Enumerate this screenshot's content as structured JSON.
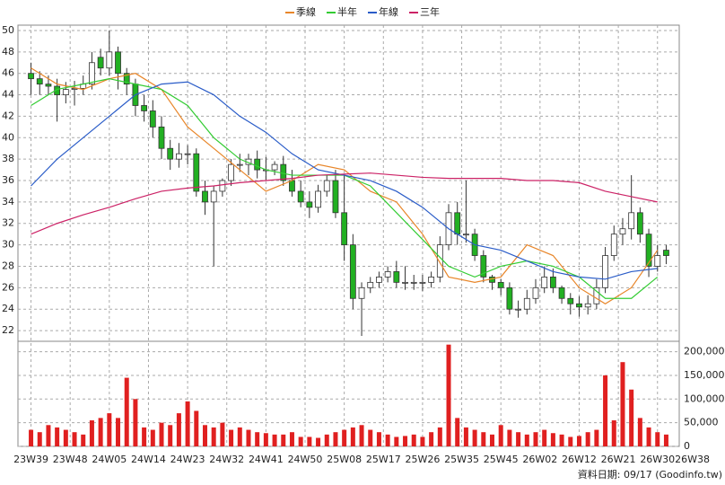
{
  "chart_data": {
    "type": "candlestick",
    "x": [
      0,
      2,
      4,
      6,
      8,
      10,
      12,
      14,
      16,
      18,
      20,
      22,
      24,
      26,
      28,
      30,
      32,
      34,
      36,
      38,
      40,
      42,
      44,
      46,
      48,
      50,
      52,
      54,
      56,
      58,
      60,
      62,
      64,
      66,
      68,
      70,
      72,
      74,
      76,
      78,
      80,
      82,
      84,
      86,
      88,
      90,
      92,
      94,
      96,
      98,
      100,
      102,
      104,
      106,
      108,
      110,
      112,
      114,
      116,
      118,
      120,
      122,
      124,
      126,
      128,
      130,
      132,
      134,
      136,
      138,
      140,
      142,
      144,
      146
    ],
    "open": [
      46,
      45.5,
      45,
      44.8,
      44,
      44.5,
      44.6,
      45,
      47.5,
      46.5,
      48,
      46,
      45,
      43,
      42.5,
      41,
      39,
      38,
      38.5,
      38.5,
      35,
      34,
      35,
      36,
      37.5,
      37.5,
      38,
      37,
      37,
      37.5,
      36,
      35,
      34,
      33.5,
      35,
      36,
      33,
      30,
      25,
      26,
      26.5,
      27,
      27.5,
      26.5,
      26.5,
      26.5,
      26.5,
      27,
      30,
      33,
      31,
      31,
      29,
      27,
      26.5,
      26,
      24,
      24,
      25,
      26,
      27,
      26,
      25,
      24.5,
      24.2,
      24.5,
      26,
      29,
      31,
      31.5,
      33,
      31,
      28,
      29.5
    ],
    "high": [
      47,
      46.2,
      45.8,
      45.5,
      45.2,
      45.3,
      45.8,
      48,
      48.3,
      50,
      48.5,
      46.5,
      45.5,
      44,
      43.5,
      42,
      39.8,
      39.5,
      39.3,
      39,
      36,
      35.5,
      36.2,
      38,
      38.5,
      38.5,
      38.8,
      38.2,
      37.8,
      38.3,
      37,
      36,
      35,
      35.6,
      36.5,
      37,
      36.5,
      31,
      26.5,
      27,
      27.5,
      28,
      28.5,
      28,
      27.2,
      27.2,
      27.5,
      30.8,
      33.8,
      34,
      36,
      31.5,
      29.5,
      27.2,
      26.8,
      26.5,
      24.8,
      25.8,
      26.8,
      28,
      27.8,
      26.2,
      25.5,
      25.2,
      25.3,
      26.8,
      29.8,
      31.8,
      32.5,
      36.5,
      33.5,
      31.5,
      30,
      30
    ],
    "low": [
      44,
      44,
      44,
      41.5,
      43.2,
      43,
      44,
      44.5,
      45.8,
      45.8,
      44.5,
      44,
      42,
      41.5,
      40,
      38,
      37,
      37.2,
      37.5,
      34.5,
      32.8,
      28,
      34.5,
      35.5,
      36.8,
      36.5,
      36.2,
      36,
      36.5,
      35.5,
      34.5,
      33.5,
      32.5,
      33,
      34.5,
      32.5,
      28.5,
      24,
      21.5,
      25.5,
      26,
      26.5,
      26,
      25.8,
      25.8,
      25.7,
      26,
      26.5,
      29.5,
      30,
      30.2,
      28.5,
      26.5,
      25.8,
      25.3,
      23.5,
      23.2,
      23.5,
      24.5,
      25.5,
      25.5,
      24.5,
      23.5,
      23.3,
      23.5,
      24,
      25.5,
      28.5,
      30,
      30.5,
      30.2,
      27,
      27.5,
      28.2
    ],
    "close": [
      45.5,
      45,
      44.8,
      44,
      44.5,
      44.6,
      45,
      47,
      46.5,
      48,
      46,
      45,
      43,
      42.5,
      41,
      39,
      38,
      38.5,
      38.5,
      35,
      34,
      35,
      36,
      37.5,
      37.5,
      38,
      37,
      37,
      37.5,
      36,
      35,
      34,
      33.5,
      35,
      36,
      33,
      30,
      25,
      26,
      26.5,
      27,
      27.5,
      26.5,
      26.5,
      26.5,
      26.5,
      27,
      30,
      33,
      31,
      31,
      29,
      27,
      26.5,
      26,
      24,
      24,
      25,
      26,
      27,
      26,
      25,
      24.5,
      24.2,
      24.5,
      26,
      29,
      31,
      31.5,
      33,
      31,
      28,
      29,
      29
    ],
    "volume": [
      35000,
      30000,
      45000,
      40000,
      35000,
      30000,
      25000,
      55000,
      60000,
      70000,
      60000,
      145000,
      100000,
      40000,
      35000,
      50000,
      45000,
      70000,
      95000,
      75000,
      45000,
      40000,
      50000,
      35000,
      40000,
      35000,
      30000,
      28000,
      25000,
      25000,
      30000,
      20000,
      20000,
      18000,
      25000,
      30000,
      35000,
      40000,
      45000,
      35000,
      30000,
      25000,
      20000,
      22000,
      25000,
      20000,
      30000,
      40000,
      215000,
      60000,
      40000,
      35000,
      30000,
      25000,
      45000,
      35000,
      30000,
      25000,
      30000,
      35000,
      28000,
      25000,
      20000,
      22000,
      30000,
      35000,
      150000,
      55000,
      178000,
      120000,
      60000,
      40000,
      30000,
      25000
    ],
    "up_color": "#ffffff",
    "down_color": "#22b022",
    "volume_color": "#e02020",
    "lines": {
      "x": [
        0,
        6,
        12,
        18,
        24,
        30,
        36,
        42,
        48,
        54,
        60,
        66,
        72,
        78,
        84,
        90,
        96,
        102,
        108,
        114,
        120,
        126,
        132,
        138,
        144
      ],
      "series": [
        {
          "name": "季線",
          "color": "#e8862a",
          "values": [
            46.5,
            45,
            44.5,
            45.5,
            46,
            44.5,
            41,
            39,
            37,
            35,
            36,
            37.5,
            37,
            35,
            34,
            31,
            27,
            26.5,
            27,
            30,
            29,
            26,
            24.5,
            26,
            29.5
          ]
        },
        {
          "name": "半年",
          "color": "#33cc33",
          "values": [
            43,
            44.5,
            45,
            45.5,
            45,
            44.5,
            43,
            40,
            38,
            37,
            36.5,
            36.5,
            36.5,
            35.5,
            33,
            30.5,
            28,
            27,
            28,
            28.5,
            28,
            27,
            25,
            25,
            27
          ]
        },
        {
          "name": "年線",
          "color": "#2a5cc8",
          "values": [
            35.5,
            38,
            40,
            42,
            44,
            45,
            45.2,
            44,
            42,
            40.5,
            38.5,
            37,
            36.5,
            36,
            35,
            33.5,
            31.5,
            30,
            29.5,
            28.5,
            27.5,
            27,
            26.8,
            27.5,
            27.8
          ]
        },
        {
          "name": "三年",
          "color": "#cc2266",
          "values": [
            31,
            32,
            32.8,
            33.5,
            34.3,
            35,
            35.3,
            35.5,
            35.8,
            36,
            36.2,
            36.5,
            36.6,
            36.7,
            36.5,
            36.3,
            36.2,
            36.2,
            36.2,
            36,
            36,
            35.8,
            35,
            34.5,
            34
          ]
        }
      ]
    },
    "xlim": [
      -3,
      149
    ],
    "xticks": [
      {
        "value": 0,
        "label": "23W39"
      },
      {
        "value": 9,
        "label": "23W48"
      },
      {
        "value": 18,
        "label": "24W05"
      },
      {
        "value": 27,
        "label": "24W14"
      },
      {
        "value": 36,
        "label": "24W23"
      },
      {
        "value": 45,
        "label": "24W32"
      },
      {
        "value": 54,
        "label": "24W41"
      },
      {
        "value": 63,
        "label": "24W50"
      },
      {
        "value": 72,
        "label": "25W08"
      },
      {
        "value": 81,
        "label": "25W17"
      },
      {
        "value": 90,
        "label": "25W26"
      },
      {
        "value": 99,
        "label": "25W35"
      },
      {
        "value": 108,
        "label": "25W45"
      },
      {
        "value": 117,
        "label": "26W02"
      },
      {
        "value": 126,
        "label": "26W12"
      },
      {
        "value": 135,
        "label": "26W21"
      },
      {
        "value": 144,
        "label": "26W30"
      },
      {
        "value": 152,
        "label": "26W38"
      }
    ],
    "ylim": [
      21,
      50.5
    ],
    "yticks": [
      22,
      24,
      26,
      28,
      30,
      32,
      34,
      36,
      38,
      40,
      42,
      44,
      46,
      48,
      50
    ],
    "y2lim": [
      0,
      222000
    ],
    "y2ticks": [
      0,
      {
        "value": 50000,
        "label": "50,000"
      },
      {
        "value": 100000,
        "label": "100,000"
      },
      {
        "value": 150000,
        "label": "150,000"
      },
      {
        "value": 200000,
        "label": "200,000"
      }
    ],
    "grid": true,
    "footer": "資料日期: 09/17  (Goodinfo.tw)"
  }
}
